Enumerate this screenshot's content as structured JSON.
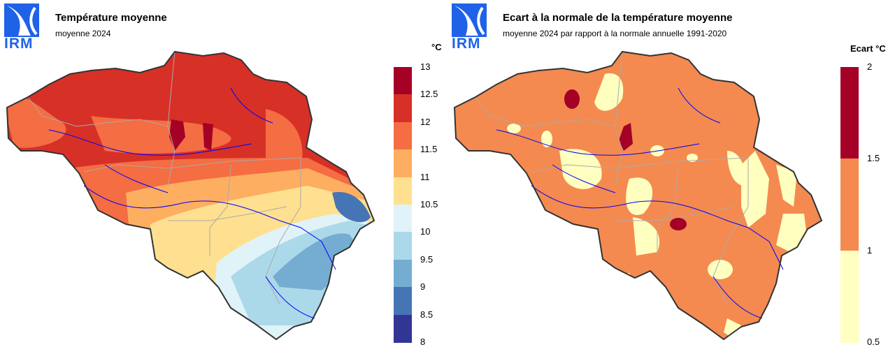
{
  "left": {
    "logo_text": "IRM",
    "title": "Température moyenne",
    "subtitle": "moyenne 2024",
    "legend_unit": "°C",
    "legend_ticks": [
      "13",
      "12.5",
      "12",
      "11.5",
      "11",
      "10.5",
      "10",
      "9.5",
      "9",
      "8.5",
      "8"
    ],
    "legend_colors": [
      "#a50026",
      "#d73027",
      "#f46d43",
      "#fdae61",
      "#fee090",
      "#e0f3f8",
      "#abd9e9",
      "#74add1",
      "#4575b4",
      "#313695"
    ]
  },
  "right": {
    "logo_text": "IRM",
    "title": "Ecart à la normale de la température moyenne",
    "subtitle": "moyenne 2024 par rapport à la normale annuelle 1991-2020",
    "legend_unit": "Ecart °C",
    "legend_ticks": [
      "2",
      "1.5",
      "1",
      "0.5"
    ],
    "legend_colors": [
      "#a50026",
      "#f48a4f",
      "#ffffc0"
    ]
  },
  "colors": {
    "logo_blue": "#1f62e8",
    "border": "#333333",
    "river": "#0000ff",
    "province_line": "#aaaaaa"
  }
}
